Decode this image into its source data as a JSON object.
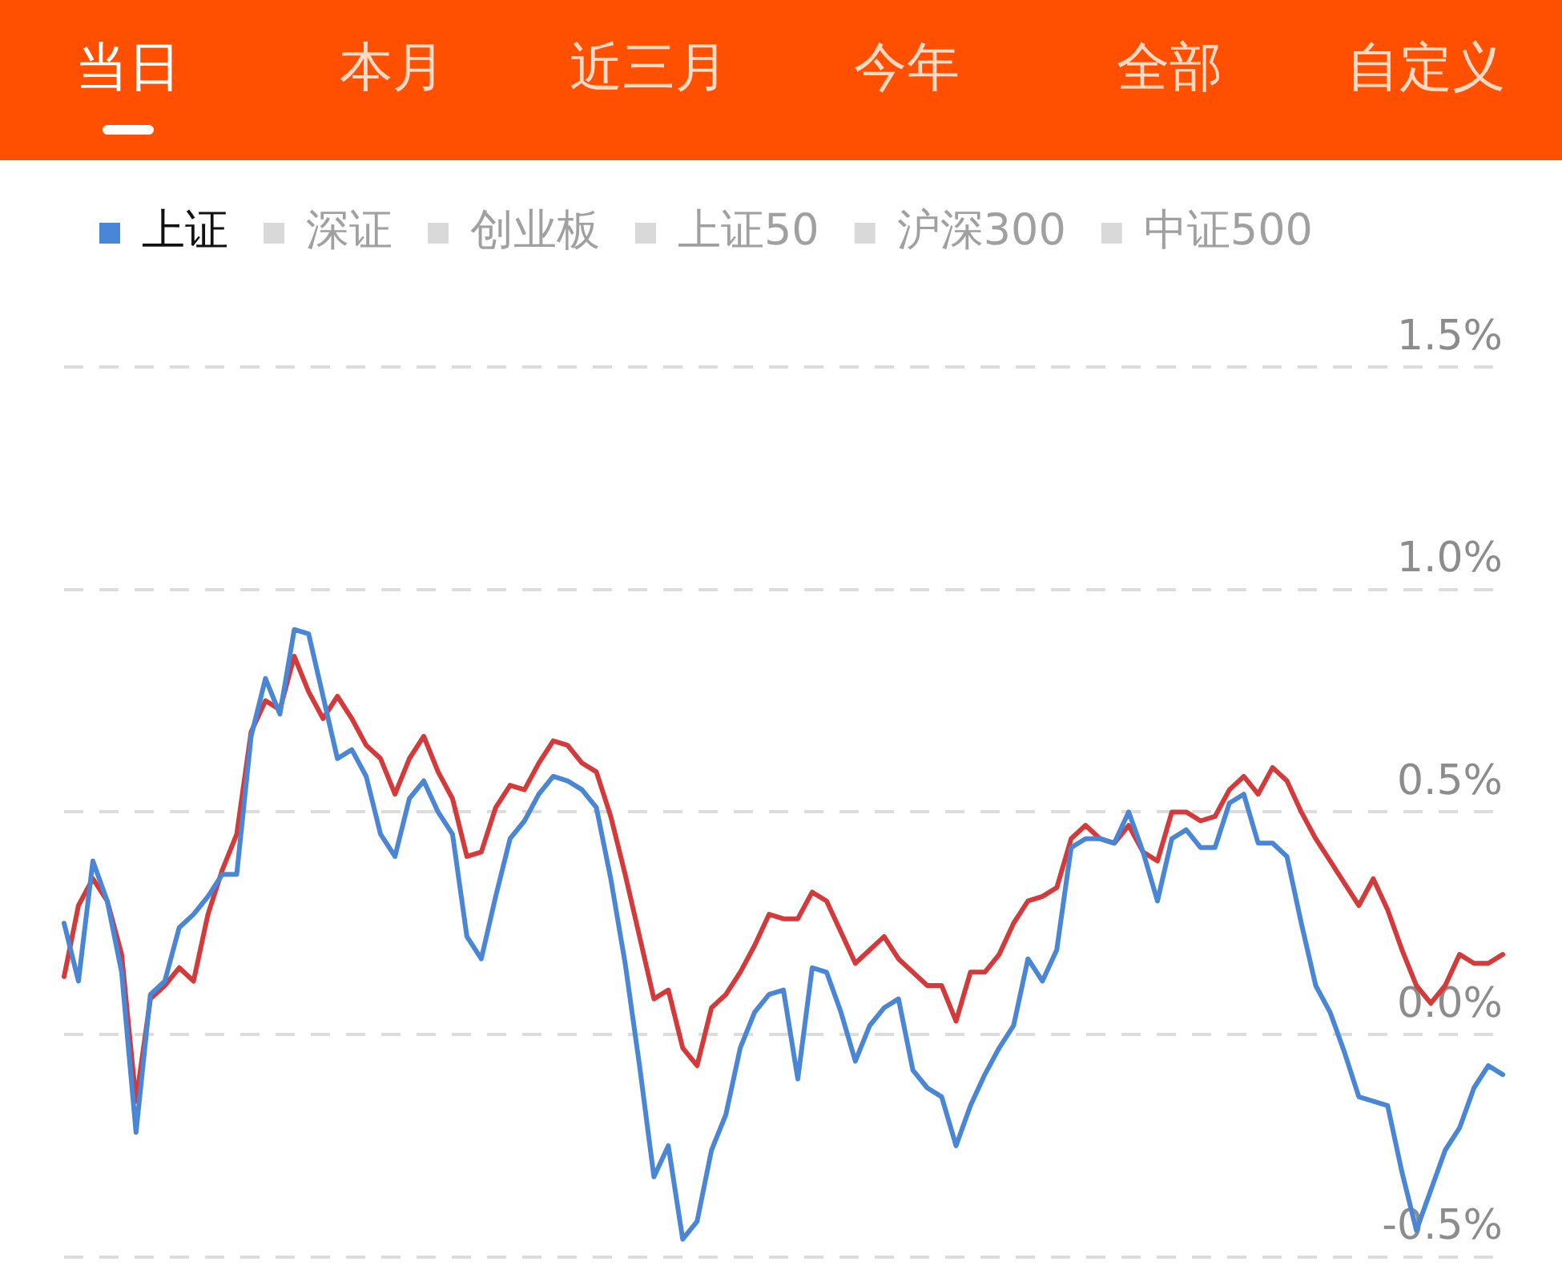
{
  "chart_data": {
    "type": "line",
    "annotations": [
      "当日",
      "本月",
      "近三月",
      "今年",
      "全部",
      "自定义"
    ],
    "categories": [
      null,
      null,
      null,
      null,
      null,
      null,
      null,
      null,
      null,
      null,
      null,
      null,
      null,
      null,
      null,
      null,
      null,
      null,
      null,
      null,
      null,
      null,
      null,
      null,
      null,
      null,
      null,
      null,
      null,
      null,
      null,
      null,
      null,
      null,
      null,
      null,
      null,
      null,
      null,
      null,
      null,
      null,
      null,
      null,
      null,
      null,
      null,
      null,
      null,
      null,
      null,
      null,
      null,
      null,
      null,
      null,
      null,
      null,
      null,
      null,
      null,
      null,
      null,
      null,
      null,
      null,
      null,
      null,
      null,
      null,
      null,
      null,
      null,
      null,
      null,
      null,
      null,
      null,
      null,
      null,
      null,
      null,
      null,
      null,
      null,
      null,
      null,
      null,
      null,
      null,
      null,
      null,
      null,
      null,
      null,
      null,
      null,
      null,
      null,
      null,
      null
    ],
    "series": [
      {
        "name": "上证",
        "color": "#4a86d6",
        "values": [
          0.25,
          0.12,
          0.39,
          0.3,
          0.14,
          -0.22,
          0.09,
          0.12,
          0.24,
          0.27,
          0.31,
          0.36,
          0.36,
          0.67,
          0.8,
          0.72,
          0.91,
          0.9,
          0.76,
          0.62,
          0.64,
          0.58,
          0.45,
          0.4,
          0.53,
          0.57,
          0.5,
          0.45,
          0.22,
          0.17,
          0.31,
          0.44,
          0.48,
          0.54,
          0.58,
          0.57,
          0.55,
          0.51,
          0.35,
          0.16,
          -0.07,
          -0.32,
          -0.25,
          -0.46,
          -0.42,
          -0.26,
          -0.18,
          -0.03,
          0.05,
          0.09,
          0.1,
          -0.1,
          0.15,
          0.14,
          0.05,
          -0.06,
          0.02,
          0.06,
          0.08,
          -0.08,
          -0.12,
          -0.14,
          -0.25,
          -0.16,
          -0.09,
          -0.03,
          0.02,
          0.17,
          0.12,
          0.19,
          0.42,
          0.44,
          0.44,
          0.43,
          0.5,
          0.41,
          0.3,
          0.44,
          0.46,
          0.42,
          0.42,
          0.52,
          0.54,
          0.43,
          0.43,
          0.4,
          0.25,
          0.11,
          0.05,
          -0.04,
          -0.14,
          -0.15,
          -0.16,
          -0.31,
          -0.44,
          -0.35,
          -0.26,
          -0.21,
          -0.12,
          -0.07,
          -0.09
        ]
      },
      {
        "color": "#d43a3a",
        "values": [
          0.13,
          0.29,
          0.35,
          0.3,
          0.18,
          -0.15,
          0.08,
          0.11,
          0.15,
          0.12,
          0.27,
          0.37,
          0.45,
          0.68,
          0.75,
          0.73,
          0.85,
          0.77,
          0.71,
          0.76,
          0.71,
          0.65,
          0.62,
          0.54,
          0.62,
          0.67,
          0.59,
          0.53,
          0.4,
          0.41,
          0.51,
          0.56,
          0.55,
          0.61,
          0.66,
          0.65,
          0.61,
          0.59,
          0.49,
          0.36,
          0.22,
          0.08,
          0.1,
          -0.03,
          -0.07,
          0.06,
          0.09,
          0.14,
          0.2,
          0.27,
          0.26,
          0.26,
          0.32,
          0.3,
          0.23,
          0.16,
          0.19,
          0.22,
          0.17,
          0.14,
          0.11,
          0.11,
          0.03,
          0.14,
          0.14,
          0.18,
          0.25,
          0.3,
          0.31,
          0.33,
          0.44,
          0.47,
          0.44,
          0.43,
          0.47,
          0.41,
          0.39,
          0.5,
          0.5,
          0.48,
          0.49,
          0.55,
          0.58,
          0.54,
          0.6,
          0.57,
          0.5,
          0.44,
          0.39,
          0.34,
          0.29,
          0.35,
          0.28,
          0.19,
          0.11,
          0.07,
          0.11,
          0.18,
          0.16,
          0.16,
          0.18
        ]
      },
      {
        "name": "深证",
        "color": "#d9d9d9",
        "values": [
          null,
          null,
          null,
          null,
          null,
          null,
          null,
          null,
          null,
          null,
          null,
          null,
          null,
          null,
          null,
          null,
          null,
          null,
          null,
          null,
          null,
          null,
          null,
          null,
          null,
          null,
          null,
          null,
          null,
          null,
          null,
          null,
          null,
          null,
          null,
          null,
          null,
          null,
          null,
          null,
          null,
          null,
          null,
          null,
          null,
          null,
          null,
          null,
          null,
          null,
          null,
          null,
          null,
          null,
          null,
          null,
          null,
          null,
          null,
          null,
          null,
          null,
          null,
          null,
          null,
          null,
          null,
          null,
          null,
          null,
          null,
          null,
          null,
          null,
          null,
          null,
          null,
          null,
          null,
          null,
          null,
          null,
          null,
          null,
          null,
          null,
          null,
          null,
          null,
          null,
          null,
          null,
          null,
          null,
          null,
          null,
          null,
          null,
          null,
          null,
          null
        ]
      },
      {
        "name": "创业板",
        "color": "#d9d9d9",
        "values": [
          null,
          null,
          null,
          null,
          null,
          null,
          null,
          null,
          null,
          null,
          null,
          null,
          null,
          null,
          null,
          null,
          null,
          null,
          null,
          null,
          null,
          null,
          null,
          null,
          null,
          null,
          null,
          null,
          null,
          null,
          null,
          null,
          null,
          null,
          null,
          null,
          null,
          null,
          null,
          null,
          null,
          null,
          null,
          null,
          null,
          null,
          null,
          null,
          null,
          null,
          null,
          null,
          null,
          null,
          null,
          null,
          null,
          null,
          null,
          null,
          null,
          null,
          null,
          null,
          null,
          null,
          null,
          null,
          null,
          null,
          null,
          null,
          null,
          null,
          null,
          null,
          null,
          null,
          null,
          null,
          null,
          null,
          null,
          null,
          null,
          null,
          null,
          null,
          null,
          null,
          null,
          null,
          null,
          null,
          null,
          null,
          null,
          null,
          null,
          null,
          null
        ]
      },
      {
        "name": "上证50",
        "color": "#d9d9d9",
        "values": [
          null,
          null,
          null,
          null,
          null,
          null,
          null,
          null,
          null,
          null,
          null,
          null,
          null,
          null,
          null,
          null,
          null,
          null,
          null,
          null,
          null,
          null,
          null,
          null,
          null,
          null,
          null,
          null,
          null,
          null,
          null,
          null,
          null,
          null,
          null,
          null,
          null,
          null,
          null,
          null,
          null,
          null,
          null,
          null,
          null,
          null,
          null,
          null,
          null,
          null,
          null,
          null,
          null,
          null,
          null,
          null,
          null,
          null,
          null,
          null,
          null,
          null,
          null,
          null,
          null,
          null,
          null,
          null,
          null,
          null,
          null,
          null,
          null,
          null,
          null,
          null,
          null,
          null,
          null,
          null,
          null,
          null,
          null,
          null,
          null,
          null,
          null,
          null,
          null,
          null,
          null,
          null,
          null,
          null,
          null,
          null,
          null,
          null,
          null,
          null,
          null
        ]
      },
      {
        "name": "沪深300",
        "color": "#d9d9d9",
        "values": [
          null,
          null,
          null,
          null,
          null,
          null,
          null,
          null,
          null,
          null,
          null,
          null,
          null,
          null,
          null,
          null,
          null,
          null,
          null,
          null,
          null,
          null,
          null,
          null,
          null,
          null,
          null,
          null,
          null,
          null,
          null,
          null,
          null,
          null,
          null,
          null,
          null,
          null,
          null,
          null,
          null,
          null,
          null,
          null,
          null,
          null,
          null,
          null,
          null,
          null,
          null,
          null,
          null,
          null,
          null,
          null,
          null,
          null,
          null,
          null,
          null,
          null,
          null,
          null,
          null,
          null,
          null,
          null,
          null,
          null,
          null,
          null,
          null,
          null,
          null,
          null,
          null,
          null,
          null,
          null,
          null,
          null,
          null,
          null,
          null,
          null,
          null,
          null,
          null,
          null,
          null,
          null,
          null,
          null,
          null,
          null,
          null,
          null,
          null,
          null,
          null
        ]
      },
      {
        "name": "中证500",
        "color": "#d9d9d9",
        "values": [
          null,
          null,
          null,
          null,
          null,
          null,
          null,
          null,
          null,
          null,
          null,
          null,
          null,
          null,
          null,
          null,
          null,
          null,
          null,
          null,
          null,
          null,
          null,
          null,
          null,
          null,
          null,
          null,
          null,
          null,
          null,
          null,
          null,
          null,
          null,
          null,
          null,
          null,
          null,
          null,
          null,
          null,
          null,
          null,
          null,
          null,
          null,
          null,
          null,
          null,
          null,
          null,
          null,
          null,
          null,
          null,
          null,
          null,
          null,
          null,
          null,
          null,
          null,
          null,
          null,
          null,
          null,
          null,
          null,
          null,
          null,
          null,
          null,
          null,
          null,
          null,
          null,
          null,
          null,
          null,
          null,
          null,
          null,
          null,
          null,
          null,
          null,
          null,
          null,
          null,
          null,
          null,
          null,
          null,
          null,
          null,
          null,
          null,
          null,
          null,
          null
        ]
      }
    ],
    "ylim": [
      -0.5,
      1.5
    ],
    "yticks": [
      {
        "value": 1.5,
        "label": "1.5%"
      },
      {
        "value": 1.0,
        "label": "1.0%"
      },
      {
        "value": 0.5,
        "label": "0.5%"
      },
      {
        "value": 0.0,
        "label": "0.0%"
      },
      {
        "value": -0.5,
        "label": "-0.5%"
      }
    ],
    "grid": "y",
    "legend": "top left",
    "marker": "none",
    "line_style": "solid"
  }
}
